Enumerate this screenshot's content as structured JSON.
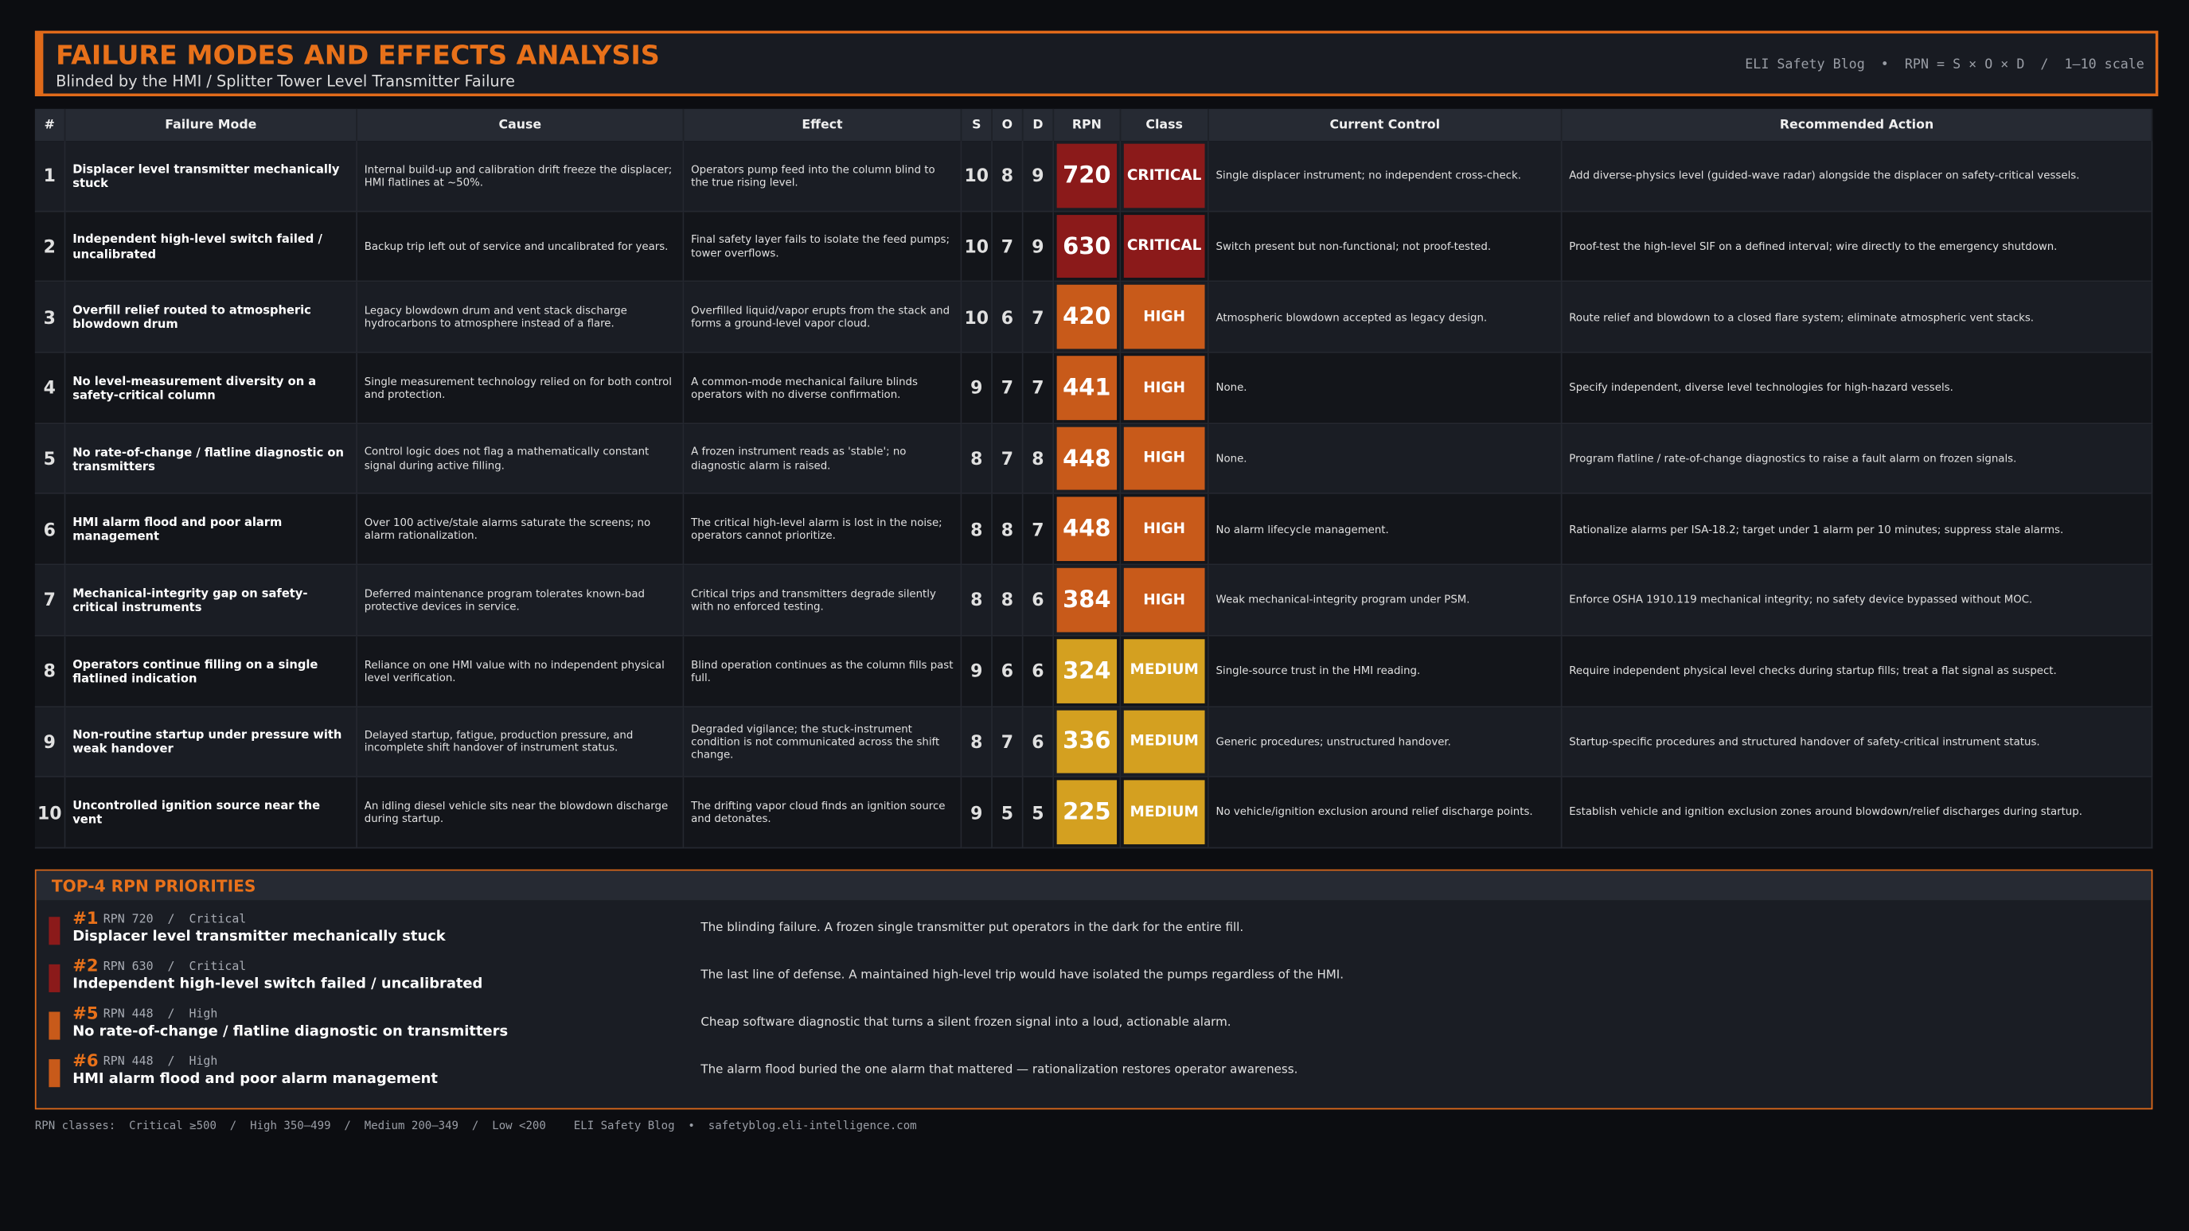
{
  "header": {
    "title": "FAILURE MODES AND EFFECTS ANALYSIS",
    "subtitle": "Blinded by the HMI  /  Splitter Tower Level Transmitter Failure",
    "meta": "ELI Safety Blog  •  RPN = S × O × D  /  1–10 scale"
  },
  "table": {
    "columns": [
      "#",
      "Failure Mode",
      "Cause",
      "Effect",
      "S",
      "O",
      "D",
      "RPN",
      "Class",
      "Current Control",
      "Recommended Action"
    ],
    "rows": [
      {
        "color": "#8b1a1a",
        "cells": [
          "1",
          "Displacer level transmitter mechanically stuck",
          "Internal build-up and calibration drift freeze the displacer; HMI flatlines at ~50%.",
          "Operators pump feed into the column blind to the true rising level.",
          "10",
          "8",
          "9",
          "720",
          "CRITICAL",
          "Single displacer instrument; no independent cross-check.",
          "Add diverse-physics level (guided-wave radar) alongside the displacer on safety-critical vessels."
        ]
      },
      {
        "color": "#8b1a1a",
        "cells": [
          "2",
          "Independent high-level switch failed / uncalibrated",
          "Backup trip left out of service and uncalibrated for years.",
          "Final safety layer fails to isolate the feed pumps; tower overflows.",
          "10",
          "7",
          "9",
          "630",
          "CRITICAL",
          "Switch present but non-functional; not proof-tested.",
          "Proof-test the high-level SIF on a defined interval; wire directly to the emergency shutdown."
        ]
      },
      {
        "color": "#c85a1a",
        "cells": [
          "3",
          "Overfill relief routed to atmospheric blowdown drum",
          "Legacy blowdown drum and vent stack discharge hydrocarbons to atmosphere instead of a flare.",
          "Overfilled liquid/vapor erupts from the stack and forms a ground-level vapor cloud.",
          "10",
          "6",
          "7",
          "420",
          "HIGH",
          "Atmospheric blowdown accepted as legacy design.",
          "Route relief and blowdown to a closed flare system; eliminate atmospheric vent stacks."
        ]
      },
      {
        "color": "#c85a1a",
        "cells": [
          "4",
          "No level-measurement diversity on a safety-critical column",
          "Single measurement technology relied on for both control and protection.",
          "A common-mode mechanical failure blinds operators with no diverse confirmation.",
          "9",
          "7",
          "7",
          "441",
          "HIGH",
          "None.",
          "Specify independent, diverse level technologies for high-hazard vessels."
        ]
      },
      {
        "color": "#c85a1a",
        "cells": [
          "5",
          "No rate-of-change / flatline diagnostic on transmitters",
          "Control logic does not flag a mathematically constant signal during active filling.",
          "A frozen instrument reads as 'stable'; no diagnostic alarm is raised.",
          "8",
          "7",
          "8",
          "448",
          "HIGH",
          "None.",
          "Program flatline / rate-of-change diagnostics to raise a fault alarm on frozen signals."
        ]
      },
      {
        "color": "#c85a1a",
        "cells": [
          "6",
          "HMI alarm flood and poor alarm management",
          "Over 100 active/stale alarms saturate the screens; no alarm rationalization.",
          "The critical high-level alarm is lost in the noise; operators cannot prioritize.",
          "8",
          "8",
          "7",
          "448",
          "HIGH",
          "No alarm lifecycle management.",
          "Rationalize alarms per ISA-18.2; target under 1 alarm per 10 minutes; suppress stale alarms."
        ]
      },
      {
        "color": "#c85a1a",
        "cells": [
          "7",
          "Mechanical-integrity gap on safety-critical instruments",
          "Deferred maintenance program tolerates known-bad protective devices in service.",
          "Critical trips and transmitters degrade silently with no enforced testing.",
          "8",
          "8",
          "6",
          "384",
          "HIGH",
          "Weak mechanical-integrity program under PSM.",
          "Enforce OSHA 1910.119 mechanical integrity; no safety device bypassed without MOC."
        ]
      },
      {
        "color": "#d4a020",
        "cells": [
          "8",
          "Operators continue filling on a single flatlined indication",
          "Reliance on one HMI value with no independent physical level verification.",
          "Blind operation continues as the column fills past full.",
          "9",
          "6",
          "6",
          "324",
          "MEDIUM",
          "Single-source trust in the HMI reading.",
          "Require independent physical level checks during startup fills; treat a flat signal as suspect."
        ]
      },
      {
        "color": "#d4a020",
        "cells": [
          "9",
          "Non-routine startup under pressure with weak handover",
          "Delayed startup, fatigue, production pressure, and incomplete shift handover of instrument status.",
          "Degraded vigilance; the stuck-instrument condition is not communicated across the shift change.",
          "8",
          "7",
          "6",
          "336",
          "MEDIUM",
          "Generic procedures; unstructured handover.",
          "Startup-specific procedures and structured handover of safety-critical instrument status."
        ]
      },
      {
        "color": "#d4a020",
        "cells": [
          "10",
          "Uncontrolled ignition source near the vent",
          "An idling diesel vehicle sits near the blowdown discharge during startup.",
          "The drifting vapor cloud finds an ignition source and detonates.",
          "9",
          "5",
          "5",
          "225",
          "MEDIUM",
          "No vehicle/ignition exclusion around relief discharge points.",
          "Establish vehicle and ignition exclusion zones around blowdown/relief discharges during startup."
        ]
      }
    ]
  },
  "priorities": {
    "title": "TOP-4 RPN PRIORITIES",
    "items": [
      {
        "rank": "#1",
        "rpn": "RPN 720  /  Critical",
        "name": "Displacer level transmitter mechanically stuck",
        "note": "The blinding failure. A frozen single transmitter put operators in the dark for the entire fill.",
        "color": "#8b1a1a"
      },
      {
        "rank": "#2",
        "rpn": "RPN 630  /  Critical",
        "name": "Independent high-level switch failed / uncalibrated",
        "note": "The last line of defense. A maintained high-level trip would have isolated the pumps regardless of the HMI.",
        "color": "#8b1a1a"
      },
      {
        "rank": "#5",
        "rpn": "RPN 448  /  High",
        "name": "No rate-of-change / flatline diagnostic on transmitters",
        "note": "Cheap software diagnostic that turns a silent frozen signal into a loud, actionable alarm.",
        "color": "#c85a1a"
      },
      {
        "rank": "#6",
        "rpn": "RPN 448  /  High",
        "name": "HMI alarm flood and poor alarm management",
        "note": "The alarm flood buried the one alarm that mattered — rationalization restores operator awareness.",
        "color": "#c85a1a"
      }
    ]
  },
  "footer": {
    "classes": "RPN classes:  Critical ≥500  /  High 350–499  /  Medium 200–349  /  Low <200",
    "credit": "ELI Safety Blog  •  safetyblog.eli-intelligence.com"
  }
}
